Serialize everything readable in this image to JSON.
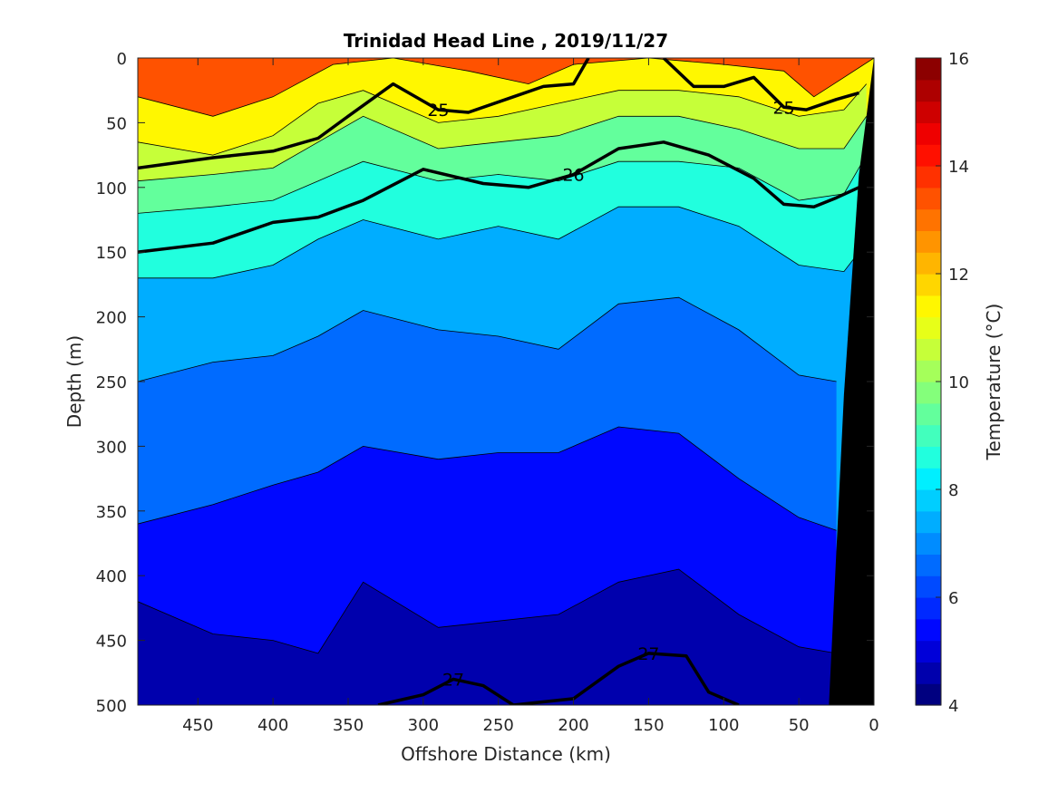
{
  "chart_data": {
    "type": "contour",
    "title": "Trinidad Head Line , 2019/11/27",
    "xlabel": "Offshore Distance (km)",
    "ylabel": "Depth (m)",
    "colorbar_label": "Temperature (°C)",
    "xlim": [
      490,
      0
    ],
    "ylim": [
      0,
      500
    ],
    "x_reversed": true,
    "y_reversed": true,
    "x_ticks": [
      450,
      400,
      350,
      300,
      250,
      200,
      150,
      100,
      50,
      0
    ],
    "y_ticks": [
      0,
      50,
      100,
      150,
      200,
      250,
      300,
      350,
      400,
      450,
      500
    ],
    "colorbar_range": [
      4,
      16
    ],
    "colorbar_ticks": [
      4,
      6,
      8,
      10,
      12,
      14,
      16
    ],
    "colormap": [
      "#000080",
      "#0000ad",
      "#0000d9",
      "#0008ff",
      "#0029ff",
      "#004aff",
      "#006bff",
      "#008cff",
      "#00adff",
      "#00ceff",
      "#00efff",
      "#21ffde",
      "#42ffbd",
      "#63ff9c",
      "#84ff7b",
      "#a5ff5a",
      "#c6ff39",
      "#e7ff18",
      "#fff700",
      "#ffd600",
      "#ffb500",
      "#ff9400",
      "#ff7300",
      "#ff5200",
      "#ff3100",
      "#ff1000",
      "#ef0000",
      "#ce0000",
      "#ad0000",
      "#8c0000"
    ],
    "temperature_levels": [
      {
        "level": 12,
        "depths": [
          [
            490,
            30
          ],
          [
            440,
            45
          ],
          [
            400,
            30
          ],
          [
            360,
            5
          ],
          [
            320,
            0
          ],
          [
            270,
            10
          ],
          [
            230,
            20
          ],
          [
            200,
            5
          ],
          [
            150,
            0
          ],
          [
            100,
            5
          ],
          [
            60,
            10
          ],
          [
            40,
            30
          ],
          [
            20,
            15
          ],
          [
            0,
            0
          ]
        ]
      },
      {
        "level": 11,
        "depths": [
          [
            490,
            65
          ],
          [
            440,
            75
          ],
          [
            400,
            60
          ],
          [
            370,
            35
          ],
          [
            340,
            25
          ],
          [
            290,
            50
          ],
          [
            250,
            45
          ],
          [
            210,
            35
          ],
          [
            170,
            25
          ],
          [
            130,
            25
          ],
          [
            90,
            30
          ],
          [
            50,
            45
          ],
          [
            20,
            40
          ],
          [
            5,
            20
          ]
        ]
      },
      {
        "level": 10,
        "depths": [
          [
            490,
            95
          ],
          [
            440,
            90
          ],
          [
            400,
            85
          ],
          [
            370,
            65
          ],
          [
            340,
            45
          ],
          [
            290,
            70
          ],
          [
            250,
            65
          ],
          [
            210,
            60
          ],
          [
            170,
            45
          ],
          [
            130,
            45
          ],
          [
            90,
            55
          ],
          [
            50,
            70
          ],
          [
            20,
            70
          ],
          [
            5,
            45
          ]
        ]
      },
      {
        "level": 9,
        "depths": [
          [
            490,
            120
          ],
          [
            440,
            115
          ],
          [
            400,
            110
          ],
          [
            370,
            95
          ],
          [
            340,
            80
          ],
          [
            290,
            95
          ],
          [
            250,
            90
          ],
          [
            210,
            95
          ],
          [
            170,
            80
          ],
          [
            130,
            80
          ],
          [
            90,
            85
          ],
          [
            50,
            110
          ],
          [
            20,
            105
          ],
          [
            5,
            75
          ]
        ]
      },
      {
        "level": 8,
        "depths": [
          [
            490,
            170
          ],
          [
            440,
            170
          ],
          [
            400,
            160
          ],
          [
            370,
            140
          ],
          [
            340,
            125
          ],
          [
            290,
            140
          ],
          [
            250,
            130
          ],
          [
            210,
            140
          ],
          [
            170,
            115
          ],
          [
            130,
            115
          ],
          [
            90,
            130
          ],
          [
            50,
            160
          ],
          [
            20,
            165
          ],
          [
            10,
            150
          ]
        ]
      },
      {
        "level": 7,
        "depths": [
          [
            490,
            250
          ],
          [
            440,
            235
          ],
          [
            400,
            230
          ],
          [
            370,
            215
          ],
          [
            340,
            195
          ],
          [
            290,
            210
          ],
          [
            250,
            215
          ],
          [
            210,
            225
          ],
          [
            170,
            190
          ],
          [
            130,
            185
          ],
          [
            90,
            210
          ],
          [
            50,
            245
          ],
          [
            25,
            250
          ]
        ]
      },
      {
        "level": 6,
        "depths": [
          [
            490,
            360
          ],
          [
            440,
            345
          ],
          [
            400,
            330
          ],
          [
            370,
            320
          ],
          [
            340,
            300
          ],
          [
            290,
            310
          ],
          [
            250,
            305
          ],
          [
            210,
            305
          ],
          [
            170,
            285
          ],
          [
            130,
            290
          ],
          [
            90,
            325
          ],
          [
            50,
            355
          ],
          [
            25,
            365
          ]
        ]
      },
      {
        "level": 5,
        "depths": [
          [
            490,
            420
          ],
          [
            440,
            445
          ],
          [
            400,
            450
          ],
          [
            370,
            460
          ],
          [
            340,
            405
          ],
          [
            290,
            440
          ],
          [
            250,
            435
          ],
          [
            210,
            430
          ],
          [
            170,
            405
          ],
          [
            130,
            395
          ],
          [
            90,
            430
          ],
          [
            50,
            455
          ],
          [
            25,
            460
          ]
        ]
      }
    ],
    "density_contours": [
      {
        "label": "25",
        "points": [
          [
            490,
            85
          ],
          [
            440,
            77
          ],
          [
            400,
            72
          ],
          [
            370,
            62
          ],
          [
            350,
            45
          ],
          [
            320,
            20
          ],
          [
            290,
            40
          ],
          [
            270,
            42
          ],
          [
            240,
            30
          ],
          [
            220,
            22
          ],
          [
            200,
            20
          ],
          [
            190,
            0
          ]
        ]
      },
      {
        "label": "25",
        "points": [
          [
            140,
            0
          ],
          [
            120,
            22
          ],
          [
            100,
            22
          ],
          [
            80,
            15
          ],
          [
            60,
            38
          ],
          [
            45,
            40
          ],
          [
            25,
            32
          ],
          [
            10,
            27
          ]
        ]
      },
      {
        "label": "26",
        "points": [
          [
            490,
            150
          ],
          [
            440,
            143
          ],
          [
            400,
            127
          ],
          [
            370,
            123
          ],
          [
            340,
            110
          ],
          [
            300,
            86
          ],
          [
            260,
            97
          ],
          [
            230,
            100
          ],
          [
            200,
            90
          ],
          [
            170,
            70
          ],
          [
            140,
            65
          ],
          [
            110,
            75
          ],
          [
            80,
            93
          ],
          [
            60,
            113
          ],
          [
            40,
            115
          ],
          [
            25,
            108
          ],
          [
            10,
            100
          ]
        ]
      },
      {
        "label": "27",
        "points": [
          [
            330,
            500
          ],
          [
            300,
            492
          ],
          [
            280,
            480
          ],
          [
            260,
            485
          ],
          [
            240,
            500
          ]
        ]
      },
      {
        "label": "27",
        "points": [
          [
            240,
            500
          ],
          [
            200,
            495
          ],
          [
            170,
            470
          ],
          [
            150,
            460
          ],
          [
            125,
            462
          ],
          [
            110,
            490
          ],
          [
            90,
            500
          ]
        ]
      }
    ],
    "seafloor_edge": [
      [
        30,
        500
      ],
      [
        20,
        260
      ],
      [
        10,
        90
      ],
      [
        0,
        0
      ]
    ]
  }
}
